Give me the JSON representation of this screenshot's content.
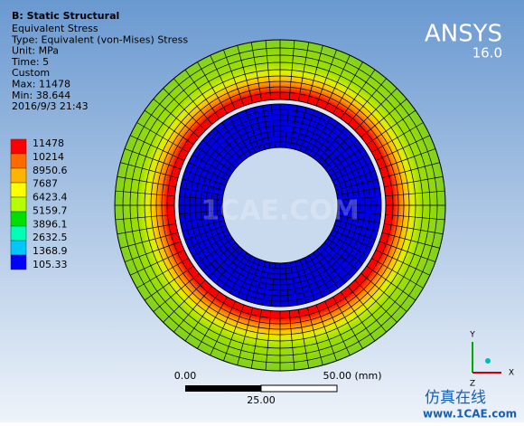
{
  "header": {
    "title": "B: Static Structural",
    "lines": [
      "Equivalent Stress",
      "Type: Equivalent (von-Mises) Stress",
      "Unit: MPa",
      "Time: 5",
      "Custom",
      "Max: 11478",
      "Min: 38.644",
      "2016/9/3 21:43"
    ]
  },
  "logo": {
    "name": "ANSYS",
    "version": "16.0"
  },
  "legend": {
    "labels": [
      "11478",
      "10214",
      "8950.6",
      "7687",
      "6423.4",
      "5159.7",
      "3896.1",
      "2632.5",
      "1368.9",
      "105.33"
    ],
    "colors": [
      "#ff0000",
      "#ff6a00",
      "#ffb400",
      "#ffff00",
      "#b4ff00",
      "#00e000",
      "#00ffb4",
      "#00c8ff",
      "#0000ff"
    ]
  },
  "scale_bar": {
    "start": "0.00",
    "end": "50.00 (mm)",
    "middle": "25.00"
  },
  "triad": {
    "y": "Y",
    "x": "X",
    "z": "Z"
  },
  "watermark": {
    "center": "1CAE.COM",
    "brand": "仿真在线",
    "url": "www.1CAE.com"
  }
}
